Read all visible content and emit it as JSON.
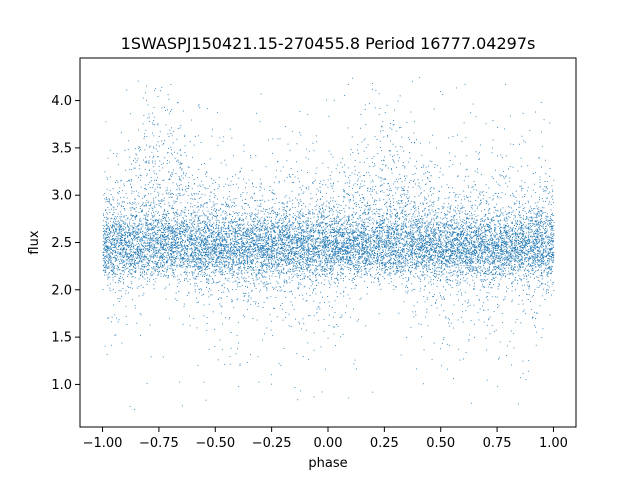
{
  "chart_data": {
    "type": "scatter",
    "title": "1SWASPJ150421.15-270455.8 Period 16777.04297s",
    "xlabel": "phase",
    "ylabel": "flux",
    "xlim": [
      -1.1,
      1.1
    ],
    "ylim": [
      0.55,
      4.45
    ],
    "x_ticks": [
      -1.0,
      -0.75,
      -0.5,
      -0.25,
      0.0,
      0.25,
      0.5,
      0.75,
      1.0
    ],
    "x_tick_labels": [
      "−1.00",
      "−0.75",
      "−0.50",
      "−0.25",
      "0.00",
      "0.25",
      "0.50",
      "0.75",
      "1.00"
    ],
    "y_ticks": [
      1.0,
      1.5,
      2.0,
      2.5,
      3.0,
      3.5,
      4.0
    ],
    "y_tick_labels": [
      "1.0",
      "1.5",
      "2.0",
      "2.5",
      "3.0",
      "3.5",
      "4.0"
    ],
    "grid": false,
    "marker_color": "#1f77b4",
    "series": [
      {
        "x_range": [
          -1.0,
          1.0
        ],
        "baseline_flux": 2.45,
        "typical_band": [
          2.1,
          2.8
        ],
        "hump_centers_phase": [
          -0.75,
          0.25
        ],
        "hump_peak_flux": 3.1,
        "min_flux": 0.72,
        "max_flux": 4.25
      }
    ]
  }
}
